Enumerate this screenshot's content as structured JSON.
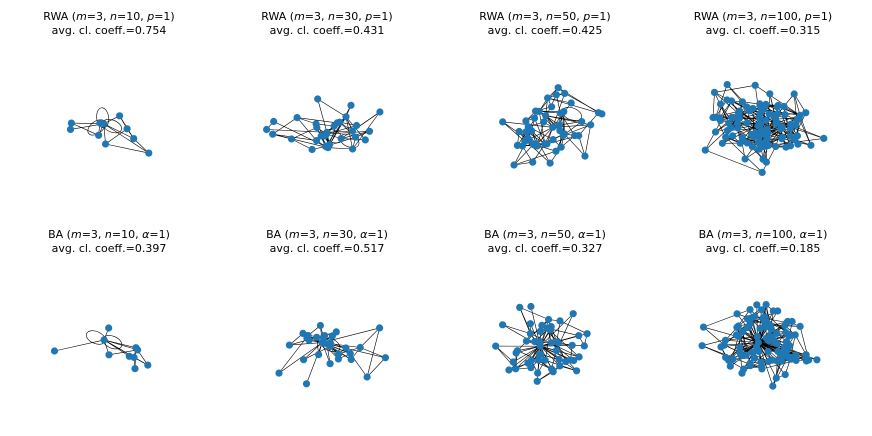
{
  "colors": {
    "node": "#1f77b4",
    "edge": "#000000",
    "background": "#ffffff"
  },
  "panels": [
    {
      "model": "RWA",
      "m": "3",
      "n": "10",
      "param": "p",
      "param_val": "1",
      "coeff_label": "avg. cl. coeff.=",
      "coeff": "0.754",
      "seed": 11,
      "count": 10,
      "hub": true,
      "loops": 3
    },
    {
      "model": "RWA",
      "m": "3",
      "n": "30",
      "param": "p",
      "param_val": "1",
      "coeff_label": "avg. cl. coeff.=",
      "coeff": "0.431",
      "seed": 23,
      "count": 30,
      "hub": false,
      "loops": 2
    },
    {
      "model": "RWA",
      "m": "3",
      "n": "50",
      "param": "p",
      "param_val": "1",
      "coeff_label": "avg. cl. coeff.=",
      "coeff": "0.425",
      "seed": 37,
      "count": 50,
      "hub": false,
      "loops": 1
    },
    {
      "model": "RWA",
      "m": "3",
      "n": "100",
      "param": "p",
      "param_val": "1",
      "coeff_label": "avg. cl. coeff.=",
      "coeff": "0.315",
      "seed": 41,
      "count": 100,
      "hub": false,
      "loops": 0
    },
    {
      "model": "BA",
      "m": "3",
      "n": "10",
      "param": "α",
      "param_val": "1",
      "coeff_label": "avg. cl. coeff.=",
      "coeff": "0.397",
      "seed": 53,
      "count": 10,
      "hub": true,
      "loops": 2
    },
    {
      "model": "BA",
      "m": "3",
      "n": "30",
      "param": "α",
      "param_val": "1",
      "coeff_label": "avg. cl. coeff.=",
      "coeff": "0.517",
      "seed": 67,
      "count": 30,
      "hub": true,
      "loops": 1
    },
    {
      "model": "BA",
      "m": "3",
      "n": "50",
      "param": "α",
      "param_val": "1",
      "coeff_label": "avg. cl. coeff.=",
      "coeff": "0.327",
      "seed": 71,
      "count": 50,
      "hub": true,
      "loops": 0
    },
    {
      "model": "BA",
      "m": "3",
      "n": "100",
      "param": "α",
      "param_val": "1",
      "coeff_label": "avg. cl. coeff.=",
      "coeff": "0.185",
      "seed": 89,
      "count": 100,
      "hub": true,
      "loops": 0
    }
  ]
}
